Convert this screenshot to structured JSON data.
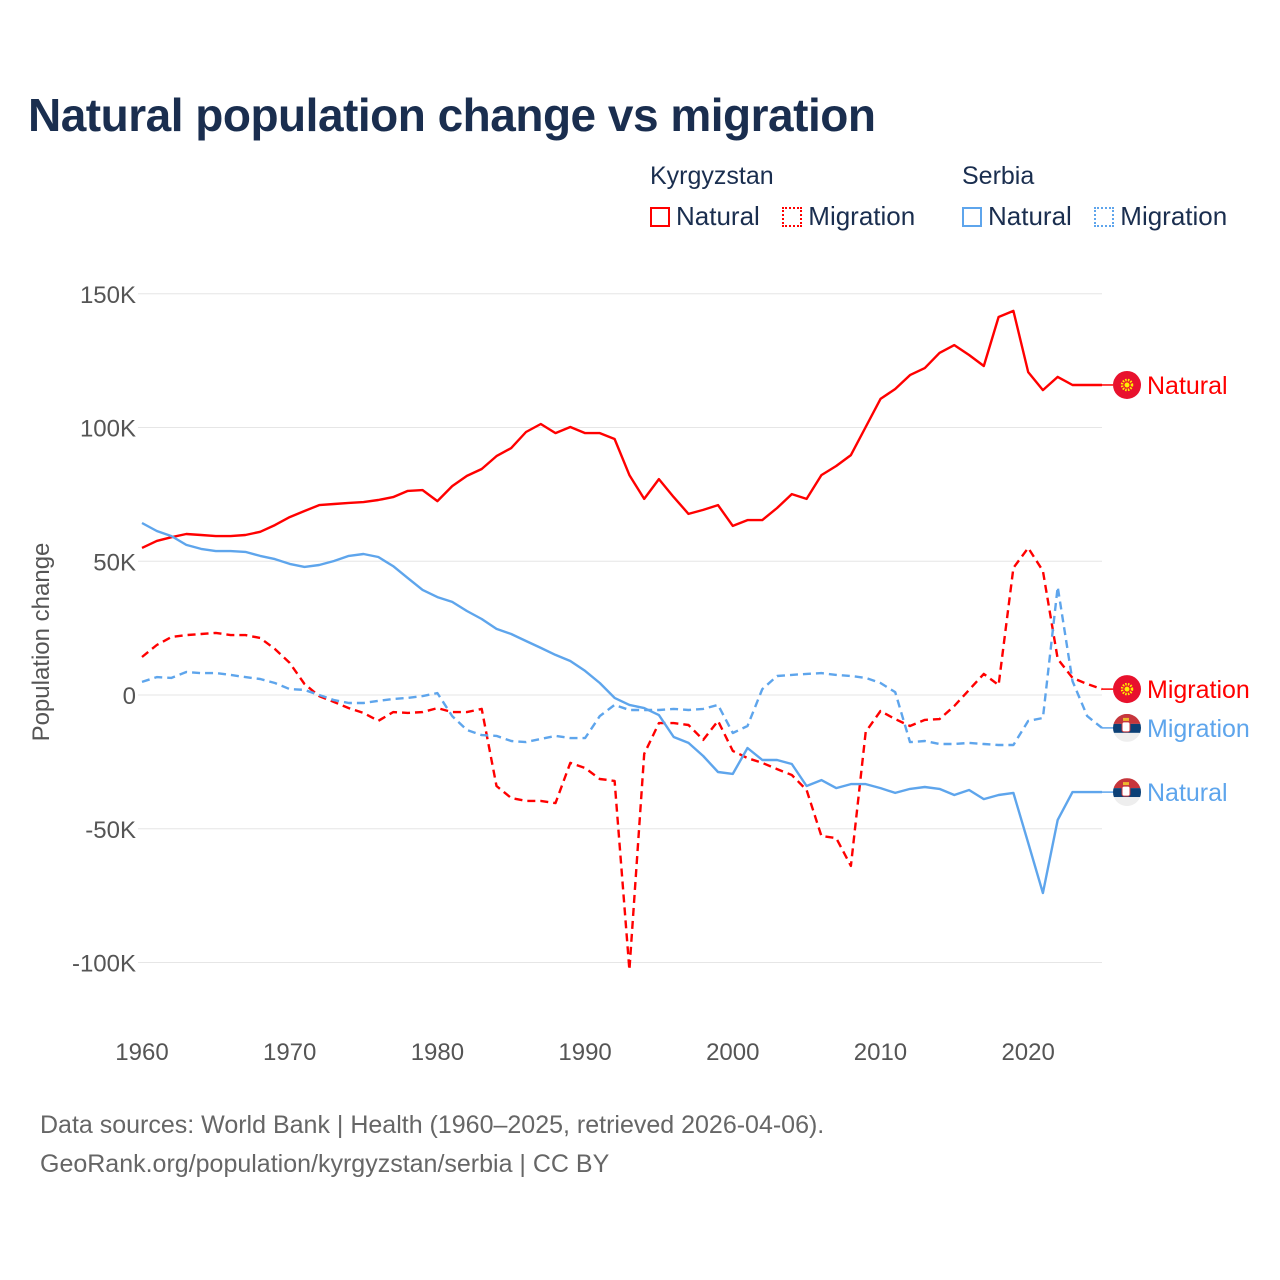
{
  "title": "Natural population change vs migration",
  "legend": {
    "groups": [
      {
        "name": "Kyrgyzstan",
        "items": [
          {
            "label": "Natural",
            "style": "solid"
          },
          {
            "label": "Migration",
            "style": "dotted"
          }
        ],
        "color": "#ff0000"
      },
      {
        "name": "Serbia",
        "items": [
          {
            "label": "Natural",
            "style": "solid"
          },
          {
            "label": "Migration",
            "style": "dotted"
          }
        ],
        "color": "#5ea5ec"
      }
    ]
  },
  "footer": {
    "line1": "Data sources: World Bank | Health (1960–2025, retrieved 2026-04-06).",
    "line2": "GeoRank.org/population/kyrgyzstan/serbia | CC BY"
  },
  "chart_data": {
    "type": "line",
    "title": "Natural population change vs migration",
    "xlabel": "",
    "ylabel": "Population change",
    "xlim": [
      1960,
      2025
    ],
    "ylim": [
      -110000,
      150000
    ],
    "grid": true,
    "legend_position": "top-right",
    "x_ticks": [
      1960,
      1970,
      1980,
      1990,
      2000,
      2010,
      2020
    ],
    "x_tick_labels": [
      "1960",
      "1970",
      "1980",
      "1990",
      "2000",
      "2010",
      "2020"
    ],
    "y_ticks": [
      150000,
      100000,
      50000,
      0,
      -50000,
      -100000
    ],
    "y_tick_labels": [
      "150K",
      "100K",
      "50K",
      "0",
      "-50K",
      "-100K"
    ],
    "x_start": 1960,
    "series": [
      {
        "name": "Kyrgyzstan Natural",
        "end_label": "Natural",
        "country": "Kyrgyzstan",
        "color": "#ff0000",
        "dash": "solid",
        "values": [
          55000,
          57600,
          59000,
          60200,
          59800,
          59400,
          59400,
          59800,
          61000,
          63500,
          66500,
          68800,
          71000,
          71400,
          71800,
          72100,
          72900,
          74000,
          76300,
          76600,
          72500,
          78100,
          81900,
          84500,
          89300,
          92300,
          98300,
          101300,
          97900,
          100200,
          97900,
          97900,
          95700,
          82200,
          73300,
          80700,
          74000,
          67700,
          69200,
          71000,
          63200,
          65400,
          65400,
          69900,
          75100,
          73300,
          82200,
          85600,
          89700,
          100200,
          110700,
          114400,
          119600,
          122200,
          127900,
          130800,
          127100,
          123000,
          141300,
          143600,
          120700,
          114000,
          118900,
          115900,
          115900,
          115900
        ]
      },
      {
        "name": "Kyrgyzstan Migration",
        "end_label": "Migration",
        "country": "Kyrgyzstan",
        "color": "#ff0000",
        "dash": "dashed",
        "values": [
          14200,
          18700,
          21700,
          22400,
          22800,
          23200,
          22400,
          22400,
          21300,
          17200,
          12000,
          4100,
          -400,
          -2600,
          -4900,
          -6700,
          -9700,
          -6400,
          -6700,
          -6400,
          -4900,
          -6400,
          -6400,
          -5200,
          -34000,
          -38500,
          -39600,
          -39600,
          -40400,
          -25400,
          -27300,
          -31400,
          -32100,
          -102800,
          -22000,
          -10500,
          -10500,
          -11200,
          -16800,
          -9700,
          -20900,
          -23600,
          -25400,
          -27700,
          -29900,
          -35500,
          -52700,
          -53500,
          -63900,
          -13800,
          -6000,
          -9000,
          -11600,
          -9300,
          -9000,
          -4100,
          1900,
          7900,
          3700,
          47500,
          55000,
          46400,
          13500,
          6400,
          4100,
          2200
        ]
      },
      {
        "name": "Serbia Natural",
        "end_label": "Natural",
        "country": "Serbia",
        "color": "#5ea5ec",
        "dash": "solid",
        "values": [
          64300,
          61300,
          59400,
          56100,
          54600,
          53800,
          53800,
          53500,
          52000,
          50800,
          49000,
          47900,
          48600,
          50100,
          52000,
          52700,
          51600,
          48200,
          43700,
          39300,
          36600,
          34800,
          31400,
          28400,
          24700,
          22800,
          20200,
          17600,
          15000,
          12700,
          9000,
          4500,
          -1100,
          -3700,
          -4900,
          -7500,
          -15700,
          -17900,
          -22800,
          -28800,
          -29500,
          -19800,
          -24300,
          -24300,
          -25800,
          -34000,
          -31800,
          -34800,
          -33300,
          -33300,
          -34800,
          -36600,
          -35100,
          -34400,
          -35100,
          -37400,
          -35500,
          -38900,
          -37400,
          -36600,
          -55300,
          -74000,
          -46700,
          -36300,
          -36300,
          -36300
        ]
      },
      {
        "name": "Serbia Migration",
        "end_label": "Migration",
        "country": "Serbia",
        "color": "#5ea5ec",
        "dash": "dashed",
        "values": [
          4900,
          6700,
          6400,
          8600,
          8200,
          8200,
          7500,
          6700,
          6000,
          4500,
          2200,
          1900,
          0,
          -1900,
          -3000,
          -3000,
          -2200,
          -1500,
          -1100,
          -400,
          700,
          -7900,
          -13100,
          -15000,
          -15300,
          -17200,
          -17600,
          -16400,
          -15300,
          -16100,
          -16100,
          -7900,
          -3700,
          -5600,
          -5600,
          -5600,
          -5200,
          -5600,
          -5200,
          -3700,
          -14200,
          -11600,
          2200,
          7100,
          7500,
          7900,
          8200,
          7500,
          7100,
          6400,
          4500,
          1100,
          -17600,
          -17200,
          -18300,
          -18300,
          -17900,
          -18300,
          -18700,
          -18700,
          -9700,
          -8600,
          40400,
          5200,
          -7900,
          -12300
        ]
      }
    ]
  }
}
